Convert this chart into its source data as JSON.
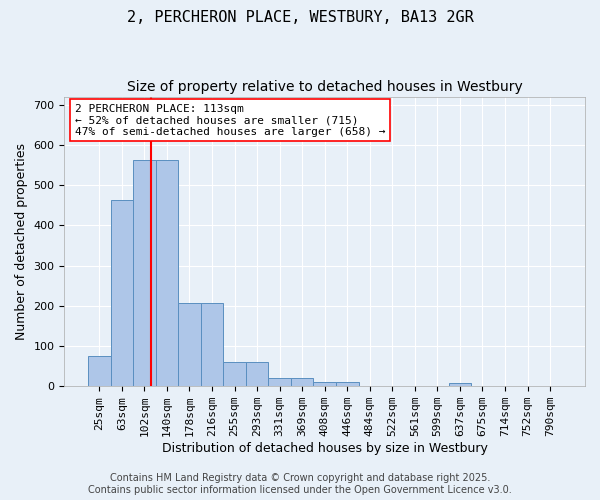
{
  "title": "2, PERCHERON PLACE, WESTBURY, BA13 2GR",
  "subtitle": "Size of property relative to detached houses in Westbury",
  "xlabel": "Distribution of detached houses by size in Westbury",
  "ylabel": "Number of detached properties",
  "categories": [
    "25sqm",
    "63sqm",
    "102sqm",
    "140sqm",
    "178sqm",
    "216sqm",
    "255sqm",
    "293sqm",
    "331sqm",
    "369sqm",
    "408sqm",
    "446sqm",
    "484sqm",
    "522sqm",
    "561sqm",
    "599sqm",
    "637sqm",
    "675sqm",
    "714sqm",
    "752sqm",
    "790sqm"
  ],
  "bar_heights": [
    75,
    462,
    563,
    563,
    207,
    207,
    60,
    60,
    20,
    20,
    10,
    10,
    0,
    0,
    0,
    0,
    8,
    0,
    0,
    0,
    0
  ],
  "bar_color": "#aec6e8",
  "bar_edge_color": "#5a8fc0",
  "vline_color": "red",
  "annotation_text": "2 PERCHERON PLACE: 113sqm\n← 52% of detached houses are smaller (715)\n47% of semi-detached houses are larger (658) →",
  "annotation_box_color": "white",
  "annotation_box_edge": "red",
  "ylim": [
    0,
    720
  ],
  "yticks": [
    0,
    100,
    200,
    300,
    400,
    500,
    600,
    700
  ],
  "bg_color": "#e8f0f8",
  "plot_bg_color": "#e8f0f8",
  "grid_color": "white",
  "footer": "Contains HM Land Registry data © Crown copyright and database right 2025.\nContains public sector information licensed under the Open Government Licence v3.0.",
  "title_fontsize": 11,
  "subtitle_fontsize": 10,
  "axis_label_fontsize": 9,
  "tick_fontsize": 8,
  "annotation_fontsize": 8,
  "footer_fontsize": 7
}
